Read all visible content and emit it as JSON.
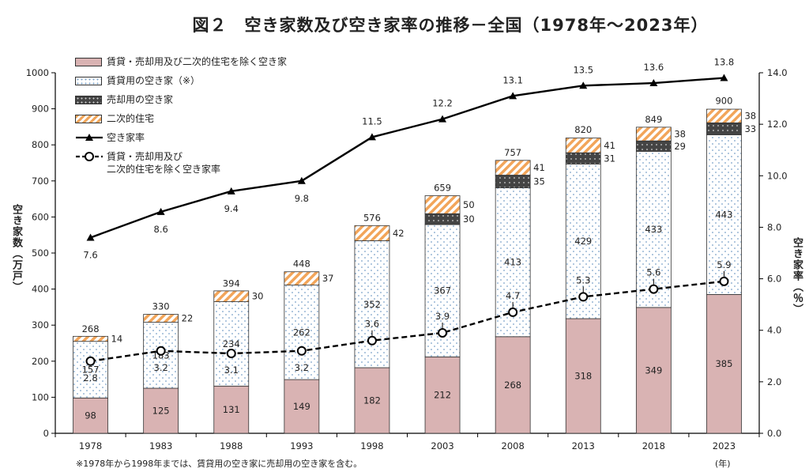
{
  "title": "図２　空き家数及び空き家率の推移－全国（1978年～2023年）",
  "footnote": "※1978年から1998年までは、賃貸用の空き家に売却用の空き家を含む。",
  "unit_year": "(年)",
  "colors": {
    "other": "#d9b3b3",
    "rental_dots": "#7aa0c8",
    "sale": "#444444",
    "secondary": "#f2a55a",
    "line": "#000000"
  },
  "legend": [
    {
      "label": "賃貸・売却用及び二次的住宅を除く空き家",
      "kind": "sw-rent"
    },
    {
      "label": "賃貸用の空き家（※）",
      "kind": "sw-rental"
    },
    {
      "label": "売却用の空き家",
      "kind": "sw-sale"
    },
    {
      "label": "二次的住宅",
      "kind": "sw-second"
    },
    {
      "label": "空き家率",
      "kind": "line-solid"
    },
    {
      "label": "賃貸・売却用及び\n二次的住宅を除く空き家率",
      "kind": "line-dash"
    }
  ],
  "chart_data": {
    "type": "bar",
    "stacked": true,
    "title": "図２　空き家数及び空き家率の推移－全国（1978年～2023年）",
    "xlabel": "(年)",
    "ylabel": "空き家数（万戸）",
    "y2label": "空き家率（％）",
    "ylim": [
      0,
      1000
    ],
    "y2lim": [
      0,
      14
    ],
    "yticks": [
      0,
      100,
      200,
      300,
      400,
      500,
      600,
      700,
      800,
      900,
      1000
    ],
    "y2ticks": [
      "0.0",
      "2.0",
      "4.0",
      "6.0",
      "8.0",
      "10.0",
      "12.0",
      "14.0"
    ],
    "categories": [
      "1978",
      "1983",
      "1988",
      "1993",
      "1998",
      "2003",
      "2008",
      "2013",
      "2018",
      "2023"
    ],
    "series": [
      {
        "name": "賃貸・売却用及び二次的住宅を除く空き家",
        "values": [
          98,
          125,
          131,
          149,
          182,
          212,
          268,
          318,
          349,
          385
        ]
      },
      {
        "name": "賃貸用の空き家（※）",
        "values": [
          157,
          183,
          234,
          262,
          352,
          367,
          413,
          429,
          433,
          443
        ]
      },
      {
        "name": "売却用の空き家",
        "values": [
          null,
          null,
          null,
          null,
          null,
          30,
          35,
          31,
          29,
          33
        ]
      },
      {
        "name": "二次的住宅",
        "values": [
          14,
          22,
          30,
          37,
          42,
          50,
          41,
          41,
          38,
          38
        ]
      }
    ],
    "totals": [
      268,
      330,
      394,
      448,
      576,
      659,
      757,
      820,
      849,
      900
    ],
    "lines": [
      {
        "name": "空き家率",
        "axis": "right",
        "values": [
          7.6,
          8.6,
          9.4,
          9.8,
          11.5,
          12.2,
          13.1,
          13.5,
          13.6,
          13.8
        ],
        "labels": [
          "7.6",
          "8.6",
          "9.4",
          "9.8",
          "11.5",
          "12.2",
          "13.1",
          "13.5",
          "13.6",
          "13.8"
        ]
      },
      {
        "name": "賃貸・売却用及び二次的住宅を除く空き家率",
        "axis": "right",
        "values": [
          2.8,
          3.2,
          3.1,
          3.2,
          3.6,
          3.9,
          4.7,
          5.3,
          5.6,
          5.9
        ],
        "labels": [
          "2.8",
          "3.2",
          "3.1",
          "3.2",
          "3.6",
          "3.9",
          "4.7",
          "5.3",
          "5.6",
          "5.9"
        ]
      }
    ],
    "legend_position": "top-left",
    "grid": false
  }
}
